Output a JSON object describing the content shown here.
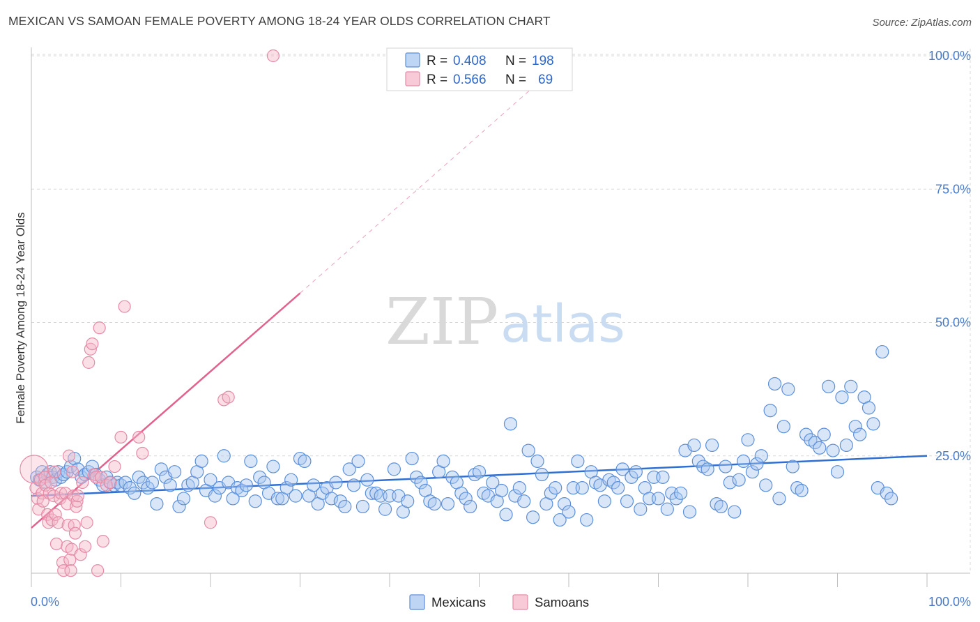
{
  "title": "MEXICAN VS SAMOAN FEMALE POVERTY AMONG 18-24 YEAR OLDS CORRELATION CHART",
  "source": "Source: ZipAtlas.com",
  "watermark": {
    "zip": "ZIP",
    "atlas": "atlas"
  },
  "colors": {
    "mexicans_fill": "#a9c7f0",
    "mexicans_stroke": "#5b8fd9",
    "mexicans_line": "#2f6fd1",
    "samoans_fill": "#f5b7c9",
    "samoans_stroke": "#e68aa6",
    "samoans_line": "#e0628d",
    "grid": "#d8d8d8",
    "tick_label": "#4a7ac7"
  },
  "legend": {
    "rows": [
      {
        "r_label": "R =",
        "r_value": "0.408",
        "n_label": "N =",
        "n_value": "198"
      },
      {
        "r_label": "R =",
        "r_value": "0.566",
        "n_label": "N =",
        "n_value": "69"
      }
    ]
  },
  "bottom_legend": [
    "Mexicans",
    "Samoans"
  ],
  "chart_data": {
    "type": "scatter",
    "title": "MEXICAN VS SAMOAN FEMALE POVERTY AMONG 18-24 YEAR OLDS CORRELATION CHART",
    "xlabel": "",
    "ylabel": "Female Poverty Among 18-24 Year Olds",
    "xlim": [
      0,
      100
    ],
    "ylim": [
      0,
      100
    ],
    "x_tick_labels": [
      "0.0%",
      "100.0%"
    ],
    "y_tick_labels": [
      "25.0%",
      "50.0%",
      "75.0%",
      "100.0%"
    ],
    "y_ticks": [
      25,
      50,
      75,
      100
    ],
    "grid": true,
    "legend_position": "top-center",
    "series": [
      {
        "name": "Mexicans",
        "r": 0.408,
        "n": 198,
        "trend": {
          "x": [
            0,
            100
          ],
          "y": [
            17.5,
            25.0
          ],
          "style": "solid"
        },
        "points": [
          [
            0.6,
            21
          ],
          [
            0.9,
            20.5
          ],
          [
            1.2,
            22
          ],
          [
            1.5,
            20
          ],
          [
            1.8,
            21.5
          ],
          [
            2.1,
            22
          ],
          [
            2.4,
            21
          ],
          [
            2.7,
            20.5
          ],
          [
            3,
            22
          ],
          [
            3.3,
            21
          ],
          [
            3.6,
            21.5
          ],
          [
            4,
            22
          ],
          [
            4.4,
            23
          ],
          [
            4.8,
            24.5
          ],
          [
            5.2,
            22.5
          ],
          [
            5.6,
            21
          ],
          [
            6,
            21.5
          ],
          [
            6.4,
            22
          ],
          [
            6.8,
            23
          ],
          [
            7.2,
            21.5
          ],
          [
            7.6,
            20.5
          ],
          [
            8,
            19.5
          ],
          [
            8.4,
            21
          ],
          [
            8.8,
            20
          ],
          [
            9.2,
            19.5
          ],
          [
            9.6,
            20
          ],
          [
            10,
            19.5
          ],
          [
            10.5,
            20
          ],
          [
            11,
            19
          ],
          [
            11.5,
            18
          ],
          [
            12,
            21
          ],
          [
            12.5,
            20
          ],
          [
            13,
            19
          ],
          [
            13.5,
            20
          ],
          [
            14,
            16
          ],
          [
            14.5,
            22.5
          ],
          [
            15,
            21
          ],
          [
            15.5,
            19.5
          ],
          [
            16,
            22
          ],
          [
            16.5,
            15.5
          ],
          [
            17,
            17
          ],
          [
            17.5,
            19.5
          ],
          [
            18,
            20
          ],
          [
            18.5,
            22
          ],
          [
            19,
            24
          ],
          [
            19.5,
            18.5
          ],
          [
            20,
            20.5
          ],
          [
            20.5,
            17.5
          ],
          [
            21,
            19
          ],
          [
            21.5,
            25
          ],
          [
            22,
            20
          ],
          [
            22.5,
            17
          ],
          [
            23,
            19
          ],
          [
            23.5,
            18.5
          ],
          [
            24,
            19.5
          ],
          [
            24.5,
            24
          ],
          [
            25,
            16.5
          ],
          [
            25.5,
            21
          ],
          [
            26,
            20
          ],
          [
            26.5,
            18
          ],
          [
            27,
            23
          ],
          [
            27.5,
            17
          ],
          [
            28,
            17
          ],
          [
            28.5,
            19
          ],
          [
            29,
            20.5
          ],
          [
            29.5,
            17.5
          ],
          [
            30,
            24.5
          ],
          [
            30.5,
            24
          ],
          [
            31,
            17.5
          ],
          [
            31.5,
            19.5
          ],
          [
            32,
            16
          ],
          [
            32.5,
            18
          ],
          [
            33,
            19
          ],
          [
            33.5,
            17
          ],
          [
            34,
            20
          ],
          [
            34.5,
            16.5
          ],
          [
            35,
            15.5
          ],
          [
            35.5,
            22.5
          ],
          [
            36,
            19.5
          ],
          [
            36.5,
            24
          ],
          [
            37,
            15.5
          ],
          [
            37.5,
            20.5
          ],
          [
            38,
            18
          ],
          [
            38.5,
            18
          ],
          [
            39,
            17.5
          ],
          [
            39.5,
            15
          ],
          [
            40,
            17.5
          ],
          [
            40.5,
            22.5
          ],
          [
            41,
            17.5
          ],
          [
            41.5,
            14.5
          ],
          [
            42,
            16.5
          ],
          [
            42.5,
            24.5
          ],
          [
            43,
            21
          ],
          [
            43.5,
            20
          ],
          [
            44,
            18.5
          ],
          [
            44.5,
            16.5
          ],
          [
            45,
            16
          ],
          [
            45.5,
            22
          ],
          [
            46,
            24
          ],
          [
            46.5,
            16
          ],
          [
            47,
            21
          ],
          [
            47.5,
            20
          ],
          [
            48,
            18
          ],
          [
            48.5,
            17
          ],
          [
            49,
            15.5
          ],
          [
            49.5,
            21.5
          ],
          [
            50,
            22
          ],
          [
            50.5,
            18
          ],
          [
            51,
            17.5
          ],
          [
            51.5,
            20
          ],
          [
            52,
            16.5
          ],
          [
            52.5,
            18.5
          ],
          [
            53,
            14
          ],
          [
            53.5,
            31
          ],
          [
            54,
            17.5
          ],
          [
            54.5,
            19
          ],
          [
            55,
            16.5
          ],
          [
            55.5,
            26
          ],
          [
            56,
            13.5
          ],
          [
            56.5,
            24
          ],
          [
            57,
            21.5
          ],
          [
            57.5,
            16
          ],
          [
            58,
            18
          ],
          [
            58.5,
            19
          ],
          [
            59,
            13
          ],
          [
            59.5,
            16
          ],
          [
            60,
            14.5
          ],
          [
            60.5,
            19
          ],
          [
            61,
            24
          ],
          [
            61.5,
            19
          ],
          [
            62,
            13
          ],
          [
            62.5,
            22
          ],
          [
            63,
            20
          ],
          [
            63.5,
            19.5
          ],
          [
            64,
            16.5
          ],
          [
            64.5,
            20.5
          ],
          [
            65,
            20
          ],
          [
            65.5,
            19
          ],
          [
            66,
            22.5
          ],
          [
            66.5,
            16.5
          ],
          [
            67,
            21
          ],
          [
            67.5,
            22
          ],
          [
            68,
            15
          ],
          [
            68.5,
            19
          ],
          [
            69,
            17
          ],
          [
            69.5,
            21
          ],
          [
            70,
            17
          ],
          [
            70.5,
            21
          ],
          [
            71,
            15
          ],
          [
            71.5,
            18
          ],
          [
            72,
            17
          ],
          [
            72.5,
            18
          ],
          [
            73,
            26
          ],
          [
            73.5,
            14.5
          ],
          [
            74,
            27
          ],
          [
            74.5,
            24
          ],
          [
            75,
            23
          ],
          [
            75.5,
            22.5
          ],
          [
            76,
            27
          ],
          [
            76.5,
            16
          ],
          [
            77,
            15.5
          ],
          [
            77.5,
            23
          ],
          [
            78,
            20
          ],
          [
            78.5,
            14.5
          ],
          [
            79,
            20.5
          ],
          [
            79.5,
            24
          ],
          [
            80,
            28
          ],
          [
            80.5,
            22
          ],
          [
            81,
            23.5
          ],
          [
            81.5,
            25
          ],
          [
            82,
            19.5
          ],
          [
            82.5,
            33.5
          ],
          [
            83,
            38.5
          ],
          [
            83.5,
            17
          ],
          [
            84,
            30.5
          ],
          [
            84.5,
            37.5
          ],
          [
            85,
            23
          ],
          [
            85.5,
            19
          ],
          [
            86,
            18.5
          ],
          [
            86.5,
            29
          ],
          [
            87,
            28
          ],
          [
            87.5,
            27.5
          ],
          [
            88,
            26.5
          ],
          [
            88.5,
            29
          ],
          [
            89,
            38
          ],
          [
            89.5,
            26
          ],
          [
            90,
            22
          ],
          [
            90.5,
            36
          ],
          [
            91,
            27
          ],
          [
            91.5,
            38
          ],
          [
            92,
            30.5
          ],
          [
            92.5,
            29
          ],
          [
            93,
            36
          ],
          [
            93.5,
            34
          ],
          [
            94,
            31
          ],
          [
            94.5,
            19
          ],
          [
            95,
            44.5
          ],
          [
            95.5,
            18
          ],
          [
            96,
            17
          ]
        ]
      },
      {
        "name": "Samoans",
        "r": 0.566,
        "n": 69,
        "trend": {
          "x": [
            0,
            30
          ],
          "y": [
            11.5,
            55.5
          ],
          "style": "solid",
          "extended_to": [
            60,
            100
          ],
          "extended_style": "dashed"
        },
        "points": [
          [
            0.3,
            22.5
          ],
          [
            0.5,
            19
          ],
          [
            0.7,
            17
          ],
          [
            0.8,
            15
          ],
          [
            1,
            20.5
          ],
          [
            1.2,
            18
          ],
          [
            1.3,
            16.5
          ],
          [
            1.5,
            21
          ],
          [
            1.6,
            19.5
          ],
          [
            1.8,
            14
          ],
          [
            1.9,
            12.5
          ],
          [
            2,
            18
          ],
          [
            2.2,
            20
          ],
          [
            2.3,
            13
          ],
          [
            2.5,
            17.5
          ],
          [
            2.6,
            22
          ],
          [
            2.7,
            14
          ],
          [
            2.8,
            8.5
          ],
          [
            3,
            12.5
          ],
          [
            3.2,
            17
          ],
          [
            3.3,
            18
          ],
          [
            3.5,
            5
          ],
          [
            3.6,
            3.5
          ],
          [
            3.8,
            18
          ],
          [
            4,
            16
          ],
          [
            4,
            8
          ],
          [
            4.1,
            12
          ],
          [
            4.2,
            25
          ],
          [
            4.3,
            5.5
          ],
          [
            4.4,
            3.5
          ],
          [
            4.5,
            7.5
          ],
          [
            4.6,
            22
          ],
          [
            4.7,
            17.5
          ],
          [
            4.8,
            12
          ],
          [
            4.9,
            10.5
          ],
          [
            5,
            15.5
          ],
          [
            5.1,
            16.5
          ],
          [
            5.2,
            17.5
          ],
          [
            5.5,
            6.5
          ],
          [
            5.7,
            20
          ],
          [
            6,
            8
          ],
          [
            6.2,
            12.5
          ],
          [
            6.4,
            42.5
          ],
          [
            6.6,
            45
          ],
          [
            6.8,
            46
          ],
          [
            7,
            21.5
          ],
          [
            7.2,
            21
          ],
          [
            7.4,
            3.5
          ],
          [
            7.6,
            49
          ],
          [
            7.8,
            21
          ],
          [
            8,
            9
          ],
          [
            8.4,
            19.5
          ],
          [
            8.8,
            20
          ],
          [
            9.3,
            23
          ],
          [
            10,
            28.5
          ],
          [
            10.4,
            53
          ],
          [
            12,
            28.5
          ],
          [
            12.4,
            25.5
          ],
          [
            20,
            12.5
          ],
          [
            21.5,
            35.5
          ],
          [
            22,
            36
          ],
          [
            27,
            100
          ]
        ]
      }
    ]
  }
}
